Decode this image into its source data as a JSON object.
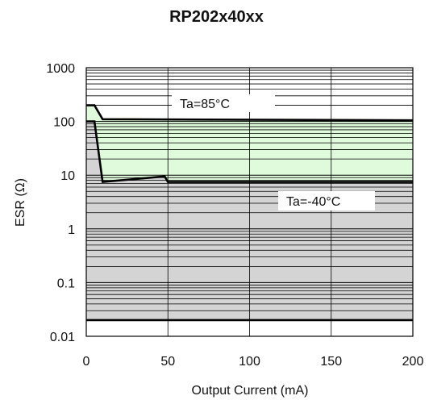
{
  "chart_data": {
    "type": "area",
    "title": "RP202x40xx",
    "xlabel": "Output Current (mA)",
    "ylabel": "ESR (Ω)",
    "xlim": [
      0,
      200
    ],
    "ylim": [
      0.01,
      1000
    ],
    "yscale": "log",
    "x_ticks": [
      0,
      50,
      100,
      150,
      200
    ],
    "y_ticks": [
      {
        "value": 0.01,
        "label": "0.01"
      },
      {
        "value": 0.1,
        "label": "0.1"
      },
      {
        "value": 1,
        "label": "1"
      },
      {
        "value": 10,
        "label": "10"
      },
      {
        "value": 100,
        "label": "100"
      },
      {
        "value": 1000,
        "label": "1000"
      }
    ],
    "grid": true,
    "lower_bound_esr": 0.02,
    "series": [
      {
        "name": "Ta=85°C",
        "fill": "#e0fbdc",
        "points": [
          [
            0,
            200
          ],
          [
            5,
            200
          ],
          [
            10,
            110
          ],
          [
            200,
            105
          ]
        ]
      },
      {
        "name": "Ta=-40°C",
        "fill": "#d4d4d4",
        "points": [
          [
            0,
            100
          ],
          [
            5,
            100
          ],
          [
            10,
            7.5
          ],
          [
            48,
            9.5
          ],
          [
            50,
            7.5
          ],
          [
            200,
            7.5
          ]
        ]
      }
    ],
    "annotations": [
      {
        "series": "Ta=85°C",
        "text": "Ta=85°C"
      },
      {
        "series": "Ta=-40°C",
        "text": "Ta=-40°C"
      }
    ]
  }
}
